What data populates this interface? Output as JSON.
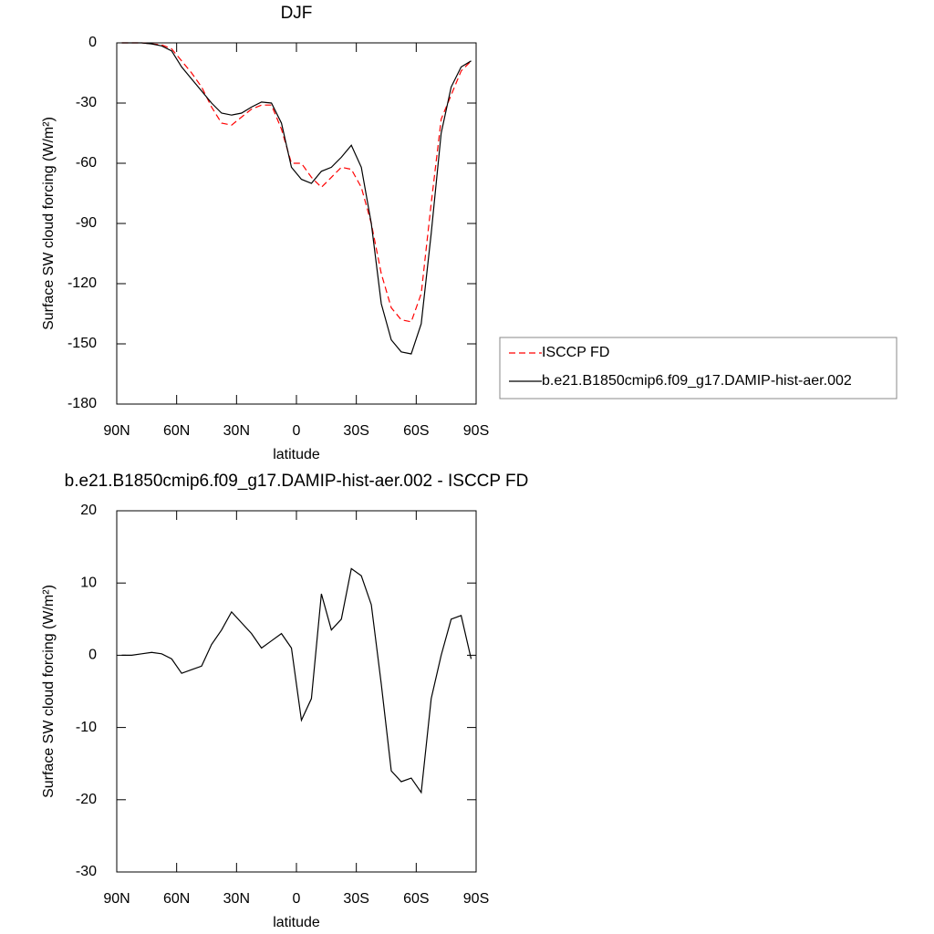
{
  "chart_data": [
    {
      "type": "line",
      "title": "DJF",
      "xlabel": "latitude",
      "ylabel": "Surface SW cloud forcing (W/m²)",
      "x": [
        87.5,
        82.5,
        77.5,
        72.5,
        67.5,
        62.5,
        57.5,
        52.5,
        47.5,
        42.5,
        37.5,
        32.5,
        27.5,
        22.5,
        17.5,
        12.5,
        7.5,
        2.5,
        -2.5,
        -7.5,
        -12.5,
        -17.5,
        -22.5,
        -27.5,
        -32.5,
        -37.5,
        -42.5,
        -47.5,
        -52.5,
        -57.5,
        -62.5,
        -67.5,
        -72.5,
        -77.5,
        -82.5,
        -87.5
      ],
      "series": [
        {
          "name": "ISCCP FD",
          "color": "#ff0000",
          "dash": true,
          "values": [
            0,
            0,
            0,
            -0.5,
            -1,
            -3,
            -9,
            -15,
            -22,
            -32,
            -40,
            -41,
            -37,
            -33,
            -31,
            -31,
            -43,
            -60,
            -60,
            -67,
            -72,
            -67,
            -62,
            -63,
            -72,
            -90,
            -115,
            -132,
            -138,
            -139,
            -125,
            -80,
            -38,
            -26,
            -14,
            -9
          ]
        },
        {
          "name": "b.e21.B1850cmip6.f09_g17.DAMIP-hist-aer.002",
          "color": "#000000",
          "dash": false,
          "values": [
            0,
            0,
            0,
            -0.5,
            -1.5,
            -4,
            -12,
            -18,
            -24,
            -30,
            -35,
            -36,
            -35,
            -32,
            -29.5,
            -30,
            -40,
            -62,
            -68,
            -70,
            -64,
            -62,
            -57,
            -51,
            -62,
            -90,
            -130,
            -148,
            -154,
            -155,
            -140,
            -95,
            -45,
            -22,
            -12,
            -9
          ]
        }
      ],
      "xlim": [
        90,
        -90
      ],
      "xticks": [
        {
          "value": 90,
          "label": "90N"
        },
        {
          "value": 60,
          "label": "60N"
        },
        {
          "value": 30,
          "label": "30N"
        },
        0,
        {
          "value": -30,
          "label": "30S"
        },
        {
          "value": -60,
          "label": "60S"
        },
        {
          "value": -90,
          "label": "90S"
        }
      ],
      "ylim": [
        -180,
        0
      ],
      "yticks": [
        0,
        -30,
        -60,
        -90,
        -120,
        -150,
        -180
      ],
      "legend": "right"
    },
    {
      "type": "line",
      "title": "b.e21.B1850cmip6.f09_g17.DAMIP-hist-aer.002 - ISCCP FD",
      "xlabel": "latitude",
      "ylabel": "Surface SW cloud forcing (W/m²)",
      "x": [
        87.5,
        82.5,
        77.5,
        72.5,
        67.5,
        62.5,
        57.5,
        52.5,
        47.5,
        42.5,
        37.5,
        32.5,
        27.5,
        22.5,
        17.5,
        12.5,
        7.5,
        2.5,
        -2.5,
        -7.5,
        -12.5,
        -17.5,
        -22.5,
        -27.5,
        -32.5,
        -37.5,
        -42.5,
        -47.5,
        -52.5,
        -57.5,
        -62.5,
        -67.5,
        -72.5,
        -77.5,
        -82.5,
        -87.5
      ],
      "series": [
        {
          "color": "#000000",
          "dash": false,
          "values": [
            0,
            0,
            0.2,
            0.4,
            0.2,
            -0.5,
            -2.5,
            -2,
            -1.5,
            1.5,
            3.5,
            6,
            4.5,
            3,
            1,
            2,
            3,
            1,
            -9,
            -6,
            8.5,
            3.5,
            5,
            12,
            11,
            7,
            -4,
            -16,
            -17.5,
            -17,
            -19,
            -6,
            0,
            5,
            5.5,
            -0.5
          ]
        }
      ],
      "xlim": [
        90,
        -90
      ],
      "xticks": [
        {
          "value": 90,
          "label": "90N"
        },
        {
          "value": 60,
          "label": "60N"
        },
        {
          "value": 30,
          "label": "30N"
        },
        0,
        {
          "value": -30,
          "label": "30S"
        },
        {
          "value": -60,
          "label": "60S"
        },
        {
          "value": -90,
          "label": "90S"
        }
      ],
      "ylim": [
        -30,
        20
      ],
      "yticks": [
        20,
        10,
        0,
        -10,
        -20,
        -30
      ]
    }
  ]
}
